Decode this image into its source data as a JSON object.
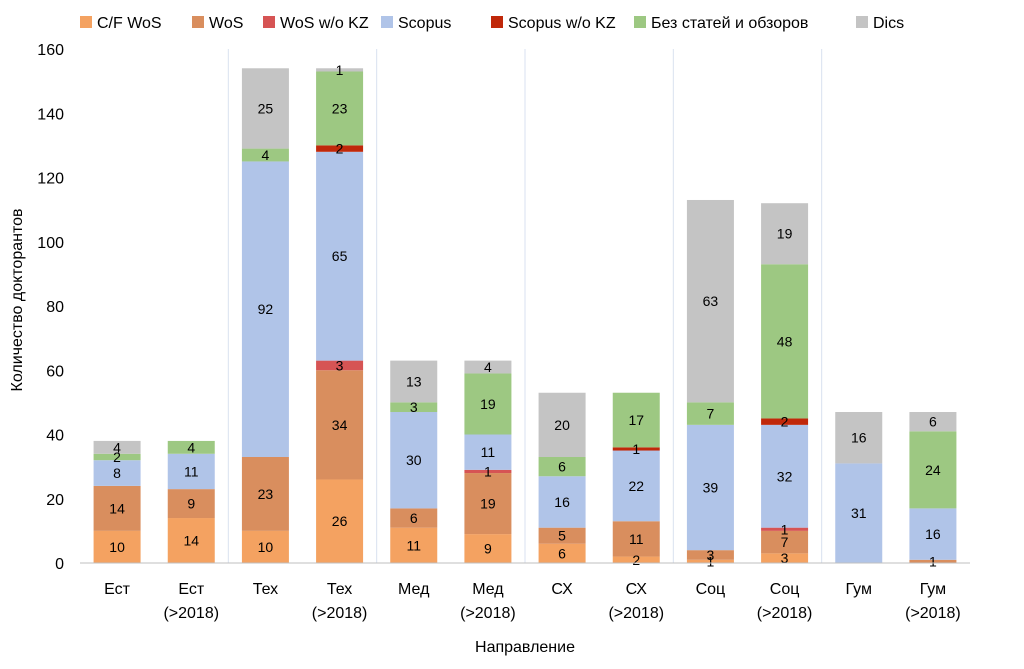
{
  "chart_data": {
    "type": "bar",
    "stacked": true,
    "xlabel": "Направление",
    "ylabel": "Количество докторантов",
    "ylim": [
      0,
      160
    ],
    "yticks": [
      0,
      20,
      40,
      60,
      80,
      100,
      120,
      140,
      160
    ],
    "grid": false,
    "legend_position": "top",
    "categories": [
      [
        "Ест"
      ],
      [
        "Ест",
        "(>2018)"
      ],
      [
        "Тех"
      ],
      [
        "Тех",
        "(>2018)"
      ],
      [
        "Мед"
      ],
      [
        "Мед",
        "(>2018)"
      ],
      [
        "СХ"
      ],
      [
        "СХ",
        "(>2018)"
      ],
      [
        "Соц"
      ],
      [
        "Соц",
        "(>2018)"
      ],
      [
        "Гум"
      ],
      [
        "Гум",
        "(>2018)"
      ]
    ],
    "series": [
      {
        "name": "C/F WoS",
        "color": "#F4A261",
        "values": [
          10,
          14,
          10,
          26,
          11,
          9,
          6,
          2,
          1,
          3,
          0,
          0
        ],
        "labels": [
          "10",
          "14",
          "10",
          "26",
          "11",
          "9",
          "6",
          "2",
          "1",
          "3",
          "",
          ""
        ]
      },
      {
        "name": "WoS",
        "color": "#D98E5E",
        "values": [
          14,
          9,
          23,
          34,
          6,
          19,
          5,
          11,
          3,
          7,
          0,
          1
        ],
        "labels": [
          "14",
          "9",
          "23",
          "34",
          "6",
          "19",
          "5",
          "11",
          "3",
          "7",
          "",
          "1"
        ]
      },
      {
        "name": "WoS w/o KZ",
        "color": "#D65454",
        "values": [
          0,
          0,
          0,
          3,
          0,
          1,
          0,
          0,
          0,
          1,
          0,
          0
        ],
        "labels": [
          "",
          "",
          "",
          "3",
          "",
          "1",
          "",
          "",
          "",
          "1",
          "",
          ""
        ]
      },
      {
        "name": "Scopus",
        "color": "#B0C4E8",
        "values": [
          8,
          11,
          92,
          65,
          30,
          11,
          16,
          22,
          39,
          32,
          31,
          16
        ],
        "labels": [
          "8",
          "11",
          "92",
          "65",
          "30",
          "11",
          "16",
          "22",
          "39",
          "32",
          "31",
          "16"
        ]
      },
      {
        "name": "Scopus w/o KZ",
        "color": "#C0280A",
        "values": [
          0,
          0,
          0,
          2,
          0,
          0,
          0,
          1,
          0,
          2,
          0,
          0
        ],
        "labels": [
          "",
          "",
          "",
          "2",
          "",
          "",
          "",
          "1",
          "",
          "2",
          "",
          ""
        ]
      },
      {
        "name": "Без статей и обзоров",
        "color": "#9DC882",
        "values": [
          2,
          4,
          4,
          23,
          3,
          19,
          6,
          17,
          7,
          48,
          0,
          24
        ],
        "labels": [
          "2",
          "4",
          "4",
          "23",
          "3",
          "19",
          "6",
          "17",
          "7",
          "48",
          "",
          "24"
        ]
      },
      {
        "name": "Dics",
        "color": "#C4C4C4",
        "values": [
          4,
          0,
          25,
          1,
          13,
          4,
          20,
          0,
          63,
          19,
          16,
          6
        ],
        "labels": [
          "4",
          "",
          "25",
          "1",
          "13",
          "4",
          "20",
          "",
          "63",
          "19",
          "16",
          "6"
        ]
      }
    ]
  }
}
